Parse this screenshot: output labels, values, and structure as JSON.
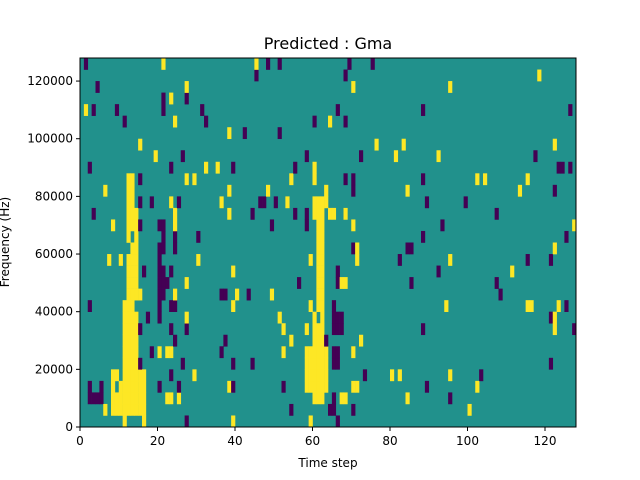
{
  "chart_data": {
    "type": "heatmap",
    "title": "Predicted : Gma",
    "xlabel": "Time step",
    "ylabel": "Frequency (Hz)",
    "xlim": [
      0,
      128
    ],
    "ylim": [
      0,
      128000
    ],
    "xticks": [
      0,
      20,
      40,
      60,
      80,
      100,
      120
    ],
    "yticks": [
      0,
      20000,
      40000,
      60000,
      80000,
      100000,
      120000
    ],
    "xtick_labels": [
      "0",
      "20",
      "40",
      "60",
      "80",
      "100",
      "120"
    ],
    "ytick_labels": [
      "0",
      "20000",
      "40000",
      "60000",
      "80000",
      "100000",
      "120000"
    ],
    "value_levels": [
      -1,
      0,
      1
    ],
    "colors": {
      "low": "#440154",
      "mid": "#21918c",
      "high": "#fde725"
    },
    "cell_size": {
      "time_steps": 1,
      "freq_hz": 4000
    },
    "high_regions": [
      {
        "t": [
          11,
          15
        ],
        "f": [
          8000,
          44000
        ]
      },
      {
        "t": [
          12,
          15
        ],
        "f": [
          44000,
          76000
        ]
      },
      {
        "t": [
          12,
          14
        ],
        "f": [
          76000,
          88000
        ]
      },
      {
        "t": [
          8,
          17
        ],
        "f": [
          4000,
          20000
        ]
      },
      {
        "t": [
          60,
          63
        ],
        "f": [
          8000,
          40000
        ]
      },
      {
        "t": [
          61,
          63
        ],
        "f": [
          40000,
          76000
        ]
      },
      {
        "t": [
          58,
          64
        ],
        "f": [
          12000,
          28000
        ]
      },
      {
        "t": [
          60,
          62
        ],
        "f": [
          76000,
          80000
        ]
      }
    ],
    "low_regions": [
      {
        "t": [
          20,
          22
        ],
        "f": [
          44000,
          72000
        ]
      },
      {
        "t": [
          20,
          21
        ],
        "f": [
          36000,
          44000
        ]
      },
      {
        "t": [
          2,
          6
        ],
        "f": [
          8000,
          16000
        ]
      },
      {
        "t": [
          65,
          67
        ],
        "f": [
          20000,
          44000
        ]
      }
    ]
  }
}
